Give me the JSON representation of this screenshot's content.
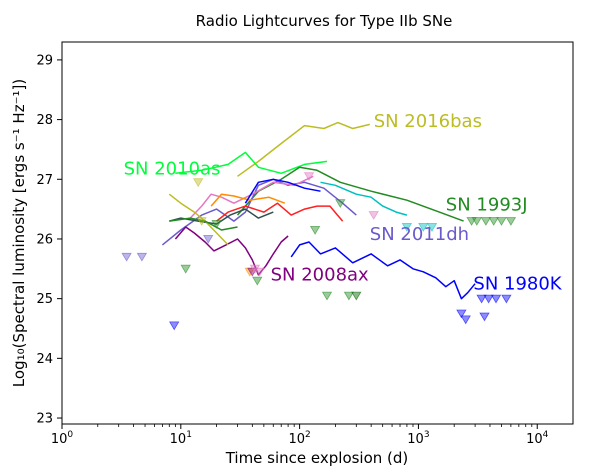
{
  "chart_data": {
    "type": "line",
    "title": "Radio Lightcurves for Type IIb SNe",
    "xlabel": "Time since explosion (d)",
    "ylabel": "Log₁₀(Spectral luminosity [ergs s⁻¹ Hz⁻¹])",
    "xscale": "log",
    "xlim": [
      1,
      20000
    ],
    "ylim": [
      22.9,
      29.3
    ],
    "x_ticks": [
      {
        "value": 1,
        "base": "10",
        "exp": "0"
      },
      {
        "value": 10,
        "base": "10",
        "exp": "1"
      },
      {
        "value": 100,
        "base": "10",
        "exp": "2"
      },
      {
        "value": 1000,
        "base": "10",
        "exp": "3"
      },
      {
        "value": 10000,
        "base": "10",
        "exp": "4"
      }
    ],
    "y_ticks": [
      23,
      24,
      25,
      26,
      27,
      28,
      29
    ],
    "grid": false,
    "series": [
      {
        "name": "SN 2016bas",
        "color": "#bcbd22",
        "label_at": [
          420,
          27.88
        ],
        "points": [
          [
            30,
            27.05
          ],
          [
            45,
            27.3
          ],
          [
            70,
            27.6
          ],
          [
            110,
            27.9
          ],
          [
            160,
            27.85
          ],
          [
            210,
            27.95
          ],
          [
            280,
            27.85
          ],
          [
            390,
            27.92
          ]
        ]
      },
      {
        "name": "SN 2010as",
        "color": "#00ff3a",
        "label_at": [
          3.3,
          27.08
        ],
        "points": [
          [
            9,
            27.1
          ],
          [
            15,
            27.15
          ],
          [
            25,
            27.25
          ],
          [
            35,
            27.45
          ],
          [
            45,
            27.2
          ],
          [
            70,
            27.1
          ],
          [
            110,
            27.25
          ],
          [
            170,
            27.3
          ]
        ]
      },
      {
        "name": "SN 1993J",
        "color": "#228b22",
        "label_at": [
          1700,
          26.48
        ],
        "points": [
          [
            30,
            26.4
          ],
          [
            45,
            26.8
          ],
          [
            70,
            27.0
          ],
          [
            100,
            27.2
          ],
          [
            140,
            27.15
          ],
          [
            220,
            26.95
          ],
          [
            400,
            26.8
          ],
          [
            800,
            26.65
          ],
          [
            1500,
            26.45
          ],
          [
            2400,
            26.3
          ]
        ]
      },
      {
        "name": "SN 2011dh",
        "color": "#6a5acd",
        "label_at": [
          390,
          25.98
        ],
        "points": [
          [
            7,
            25.9
          ],
          [
            10,
            26.15
          ],
          [
            15,
            26.4
          ],
          [
            20,
            26.5
          ],
          [
            28,
            26.3
          ],
          [
            35,
            26.45
          ],
          [
            45,
            26.9
          ],
          [
            60,
            27.0
          ],
          [
            80,
            26.9
          ],
          [
            110,
            26.95
          ],
          [
            160,
            26.85
          ],
          [
            230,
            26.6
          ],
          [
            300,
            26.4
          ]
        ]
      },
      {
        "name": "SN 2008ax",
        "color": "#800080",
        "label_at": [
          57,
          25.3
        ],
        "points": [
          [
            9,
            26.0
          ],
          [
            11,
            26.2
          ],
          [
            13,
            26.1
          ],
          [
            16,
            25.95
          ],
          [
            19,
            25.8
          ],
          [
            24,
            25.9
          ],
          [
            30,
            26.0
          ],
          [
            35,
            25.85
          ],
          [
            40,
            25.65
          ],
          [
            45,
            25.4
          ],
          [
            52,
            25.55
          ],
          [
            60,
            25.75
          ],
          [
            70,
            25.95
          ],
          [
            80,
            26.05
          ]
        ]
      },
      {
        "name": "SN 1980K",
        "color": "#0000ff",
        "label_at": [
          2900,
          25.15
        ],
        "points": [
          [
            85,
            25.7
          ],
          [
            100,
            25.9
          ],
          [
            120,
            25.95
          ],
          [
            150,
            25.75
          ],
          [
            200,
            25.85
          ],
          [
            280,
            25.6
          ],
          [
            400,
            25.75
          ],
          [
            550,
            25.55
          ],
          [
            700,
            25.65
          ],
          [
            900,
            25.5
          ],
          [
            1100,
            25.45
          ],
          [
            1400,
            25.35
          ],
          [
            1700,
            25.2
          ],
          [
            2000,
            25.3
          ],
          [
            2300,
            25.0
          ],
          [
            2600,
            25.1
          ],
          [
            3000,
            25.25
          ]
        ]
      },
      {
        "name": "",
        "color": "#00bfbf",
        "points": [
          [
            150,
            26.95
          ],
          [
            200,
            26.9
          ],
          [
            300,
            26.75
          ],
          [
            400,
            26.7
          ],
          [
            500,
            26.55
          ],
          [
            650,
            26.45
          ],
          [
            800,
            26.4
          ]
        ]
      },
      {
        "name": "",
        "color": "#ff2020",
        "points": [
          [
            20,
            26.3
          ],
          [
            25,
            26.45
          ],
          [
            35,
            26.55
          ],
          [
            50,
            26.45
          ],
          [
            65,
            26.6
          ],
          [
            85,
            26.4
          ],
          [
            110,
            26.5
          ],
          [
            140,
            26.55
          ],
          [
            180,
            26.55
          ],
          [
            230,
            26.3
          ]
        ]
      },
      {
        "name": "",
        "color": "#e377c2",
        "points": [
          [
            12,
            26.35
          ],
          [
            15,
            26.55
          ],
          [
            18,
            26.75
          ],
          [
            22,
            26.7
          ],
          [
            28,
            26.6
          ],
          [
            40,
            26.75
          ],
          [
            60,
            26.95
          ],
          [
            90,
            26.9
          ],
          [
            130,
            27.05
          ]
        ]
      },
      {
        "name": "",
        "color": "#ff8c00",
        "points": [
          [
            18,
            26.55
          ],
          [
            22,
            26.75
          ],
          [
            28,
            26.72
          ],
          [
            38,
            26.65
          ],
          [
            55,
            26.7
          ],
          [
            75,
            26.6
          ]
        ]
      },
      {
        "name": "",
        "color": "#2f4f4f",
        "points": [
          [
            8,
            26.3
          ],
          [
            10,
            26.35
          ],
          [
            14,
            26.3
          ],
          [
            20,
            26.25
          ],
          [
            26,
            26.4
          ],
          [
            35,
            26.5
          ],
          [
            45,
            26.35
          ],
          [
            60,
            26.45
          ]
        ]
      },
      {
        "name": "",
        "color": "#bcbd22",
        "points": [
          [
            8,
            26.75
          ],
          [
            10,
            26.6
          ],
          [
            13,
            26.45
          ],
          [
            16,
            26.3
          ],
          [
            20,
            26.1
          ],
          [
            25,
            25.9
          ]
        ]
      },
      {
        "name": "",
        "color": "#0000ff",
        "points": [
          [
            35,
            26.6
          ],
          [
            45,
            26.95
          ],
          [
            60,
            27.0
          ],
          [
            80,
            26.95
          ],
          [
            110,
            26.85
          ],
          [
            150,
            26.8
          ]
        ]
      },
      {
        "name": "",
        "color": "#228b22",
        "points": [
          [
            8,
            26.3
          ],
          [
            12,
            26.35
          ],
          [
            16,
            26.3
          ],
          [
            22,
            26.15
          ],
          [
            30,
            26.2
          ]
        ]
      }
    ],
    "upper_limits": [
      {
        "x": 3.5,
        "y": 25.7,
        "color": "#6a5acd"
      },
      {
        "x": 4.7,
        "y": 25.7,
        "color": "#6a5acd"
      },
      {
        "x": 8.8,
        "y": 24.55,
        "color": "#0000ff"
      },
      {
        "x": 11,
        "y": 25.5,
        "color": "#228b22"
      },
      {
        "x": 14,
        "y": 26.95,
        "color": "#bcbd22"
      },
      {
        "x": 15,
        "y": 26.3,
        "color": "#bcbd22"
      },
      {
        "x": 17,
        "y": 26.0,
        "color": "#6a5acd"
      },
      {
        "x": 20,
        "y": 26.25,
        "color": "#228b22"
      },
      {
        "x": 38,
        "y": 25.45,
        "color": "#ff8c00"
      },
      {
        "x": 40,
        "y": 25.45,
        "color": "#800080"
      },
      {
        "x": 42,
        "y": 25.5,
        "color": "#e377c2"
      },
      {
        "x": 44,
        "y": 25.3,
        "color": "#228b22"
      },
      {
        "x": 46,
        "y": 25.45,
        "color": "#e377c2"
      },
      {
        "x": 120,
        "y": 27.05,
        "color": "#e377c2"
      },
      {
        "x": 135,
        "y": 26.15,
        "color": "#228b22"
      },
      {
        "x": 170,
        "y": 25.05,
        "color": "#228b22"
      },
      {
        "x": 220,
        "y": 26.6,
        "color": "#228b22"
      },
      {
        "x": 260,
        "y": 25.05,
        "color": "#228b22"
      },
      {
        "x": 300,
        "y": 25.05,
        "color": "#006400"
      },
      {
        "x": 420,
        "y": 26.4,
        "color": "#e377c2"
      },
      {
        "x": 800,
        "y": 26.2,
        "color": "#00bfbf"
      },
      {
        "x": 1100,
        "y": 26.2,
        "color": "#00bfbf"
      },
      {
        "x": 1300,
        "y": 26.2,
        "color": "#00bfbf"
      },
      {
        "x": 2300,
        "y": 24.75,
        "color": "#0000ff"
      },
      {
        "x": 2500,
        "y": 24.65,
        "color": "#0000ff"
      },
      {
        "x": 2800,
        "y": 26.3,
        "color": "#228b22"
      },
      {
        "x": 3100,
        "y": 26.3,
        "color": "#228b22"
      },
      {
        "x": 3400,
        "y": 25.0,
        "color": "#0000ff"
      },
      {
        "x": 3600,
        "y": 24.7,
        "color": "#0000ff"
      },
      {
        "x": 3700,
        "y": 26.3,
        "color": "#228b22"
      },
      {
        "x": 3900,
        "y": 25.0,
        "color": "#0000ff"
      },
      {
        "x": 4300,
        "y": 26.3,
        "color": "#228b22"
      },
      {
        "x": 4500,
        "y": 25.0,
        "color": "#0000ff"
      },
      {
        "x": 5000,
        "y": 26.3,
        "color": "#228b22"
      },
      {
        "x": 5500,
        "y": 25.0,
        "color": "#0000ff"
      },
      {
        "x": 6000,
        "y": 26.3,
        "color": "#228b22"
      }
    ]
  }
}
